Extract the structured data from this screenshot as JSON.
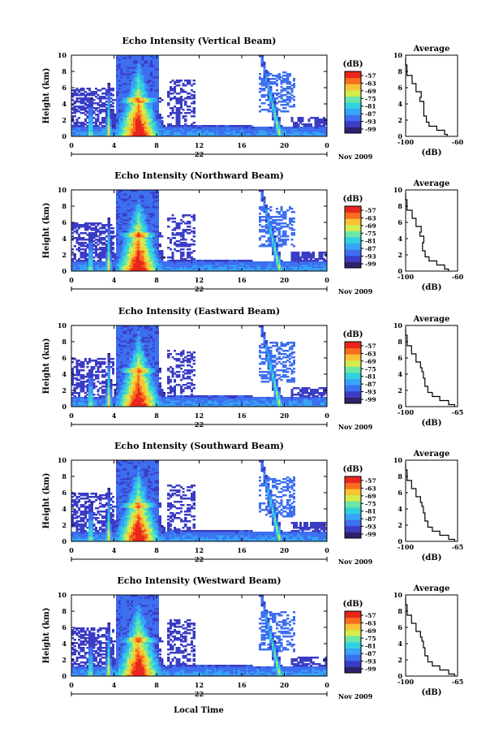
{
  "figure": {
    "footer_label": "Local Time",
    "colors": {
      "colormap": [
        "#31206b",
        "#3b3cc4",
        "#3d6ff0",
        "#37a4f5",
        "#2fd1de",
        "#6be6a6",
        "#d4ea4e",
        "#f9c232",
        "#f86d1f",
        "#e9261c"
      ]
    }
  },
  "chart_data": [
    {
      "type": "heatmap",
      "title": "Echo Intensity (Vertical Beam)",
      "ylabel": "Height (km)",
      "ylim": [
        0,
        10
      ],
      "yticks": [
        "0",
        "2",
        "4",
        "6",
        "8",
        "10"
      ],
      "xlim": [
        0,
        24
      ],
      "xticks": [
        "0",
        "4",
        "8",
        "12",
        "16",
        "20",
        "0"
      ],
      "date_label": "22",
      "month_label": "Nov 2009",
      "colorbar": {
        "unit": "(dB)",
        "ticks": [
          "-57",
          "-63",
          "-69",
          "-75",
          "-81",
          "-87",
          "-93",
          "-99"
        ]
      },
      "profile": {
        "title": "Average",
        "xlabel": "(dB)",
        "xlim": [
          -100,
          -60
        ],
        "xticks": [
          "-100",
          "-60"
        ],
        "yticks": [
          "0",
          "2",
          "4",
          "6",
          "8",
          "10"
        ],
        "x": [
          -68,
          -70,
          -76,
          -82,
          -84,
          -86,
          -86,
          -89,
          -88,
          -92,
          -95,
          -99,
          -100
        ],
        "y": [
          0,
          0.5,
          1,
          1.5,
          2,
          3,
          4,
          4.6,
          5,
          6,
          7,
          8,
          9.6
        ]
      }
    },
    {
      "type": "heatmap",
      "title": "Echo Intensity (Northward Beam)",
      "ylabel": "Height (km)",
      "ylim": [
        0,
        10
      ],
      "yticks": [
        "0",
        "2",
        "4",
        "6",
        "8",
        "10"
      ],
      "xlim": [
        0,
        24
      ],
      "xticks": [
        "0",
        "4",
        "8",
        "12",
        "16",
        "20",
        "0"
      ],
      "date_label": "22",
      "month_label": "Nov 2009",
      "colorbar": {
        "unit": "(dB)",
        "ticks": [
          "-57",
          "-63",
          "-69",
          "-75",
          "-81",
          "-87",
          "-93",
          "-99"
        ]
      },
      "profile": {
        "title": "Average",
        "xlabel": "(dB)",
        "xlim": [
          -100,
          -60
        ],
        "xticks": [
          "-100",
          "-60"
        ],
        "yticks": [
          "0",
          "2",
          "4",
          "6",
          "8",
          "10"
        ],
        "x": [
          -67,
          -70,
          -76,
          -82,
          -85,
          -87,
          -86,
          -89,
          -88,
          -92,
          -95,
          -99,
          -100
        ],
        "y": [
          0,
          0.5,
          1,
          1.5,
          2,
          3,
          4,
          4.6,
          5,
          6,
          7,
          8,
          9.6
        ]
      }
    },
    {
      "type": "heatmap",
      "title": "Echo Intensity (Eastward Beam)",
      "ylabel": "Height (km)",
      "ylim": [
        0,
        10
      ],
      "yticks": [
        "0",
        "2",
        "4",
        "6",
        "8",
        "10"
      ],
      "xlim": [
        0,
        24
      ],
      "xticks": [
        "0",
        "4",
        "8",
        "12",
        "16",
        "20",
        "0"
      ],
      "date_label": "22",
      "month_label": "Nov 2009",
      "colorbar": {
        "unit": "(dB)",
        "ticks": [
          "-57",
          "-63",
          "-69",
          "-75",
          "-81",
          "-87",
          "-93",
          "-99"
        ]
      },
      "profile": {
        "title": "Average",
        "xlabel": "(dB)",
        "xlim": [
          -100,
          -65
        ],
        "xticks": [
          "-100",
          "-65"
        ],
        "yticks": [
          "0",
          "2",
          "4",
          "6",
          "8",
          "10"
        ],
        "x": [
          -67,
          -71,
          -77,
          -82,
          -85,
          -87,
          -88,
          -89,
          -90,
          -93,
          -96,
          -99,
          -100
        ],
        "y": [
          0,
          0.5,
          1,
          1.5,
          2,
          3,
          4,
          4.6,
          5,
          6,
          7,
          8,
          9.6
        ]
      }
    },
    {
      "type": "heatmap",
      "title": "Echo Intensity (Southward Beam)",
      "ylabel": "Height (km)",
      "ylim": [
        0,
        10
      ],
      "yticks": [
        "0",
        "2",
        "4",
        "6",
        "8",
        "10"
      ],
      "xlim": [
        0,
        24
      ],
      "xticks": [
        "0",
        "4",
        "8",
        "12",
        "16",
        "20",
        "0"
      ],
      "date_label": "22",
      "month_label": "Nov 2009",
      "colorbar": {
        "unit": "(dB)",
        "ticks": [
          "-57",
          "-63",
          "-69",
          "-75",
          "-81",
          "-87",
          "-93",
          "-99"
        ]
      },
      "profile": {
        "title": "Average",
        "xlabel": "(dB)",
        "xlim": [
          -100,
          -65
        ],
        "xticks": [
          "-100",
          "-65"
        ],
        "yticks": [
          "0",
          "2",
          "4",
          "6",
          "8",
          "10"
        ],
        "x": [
          -67,
          -71,
          -77,
          -82,
          -85,
          -87,
          -88,
          -89,
          -90,
          -93,
          -96,
          -99,
          -100
        ],
        "y": [
          0,
          0.5,
          1,
          1.5,
          2,
          3,
          4,
          4.6,
          5,
          6,
          7,
          8,
          9.6
        ]
      }
    },
    {
      "type": "heatmap",
      "title": "Echo Intensity (Westward Beam)",
      "ylabel": "Height (km)",
      "ylim": [
        0,
        10
      ],
      "yticks": [
        "0",
        "2",
        "4",
        "6",
        "8",
        "10"
      ],
      "xlim": [
        0,
        24
      ],
      "xticks": [
        "0",
        "4",
        "8",
        "12",
        "16",
        "20",
        "0"
      ],
      "date_label": "22",
      "month_label": "Nov 2009",
      "colorbar": {
        "unit": "(dB)",
        "ticks": [
          "-57",
          "-63",
          "-69",
          "-75",
          "-81",
          "-87",
          "-93",
          "-99"
        ]
      },
      "profile": {
        "title": "Average",
        "xlabel": "(dB)",
        "xlim": [
          -100,
          -65
        ],
        "xticks": [
          "-100",
          "-65"
        ],
        "yticks": [
          "0",
          "2",
          "4",
          "6",
          "8",
          "10"
        ],
        "x": [
          -67,
          -71,
          -77,
          -82,
          -85,
          -87,
          -88,
          -89,
          -90,
          -93,
          -96,
          -99,
          -100
        ],
        "y": [
          0,
          0.5,
          1,
          1.5,
          2,
          3,
          4,
          4.6,
          5,
          6,
          7,
          8,
          9.6
        ]
      }
    }
  ]
}
